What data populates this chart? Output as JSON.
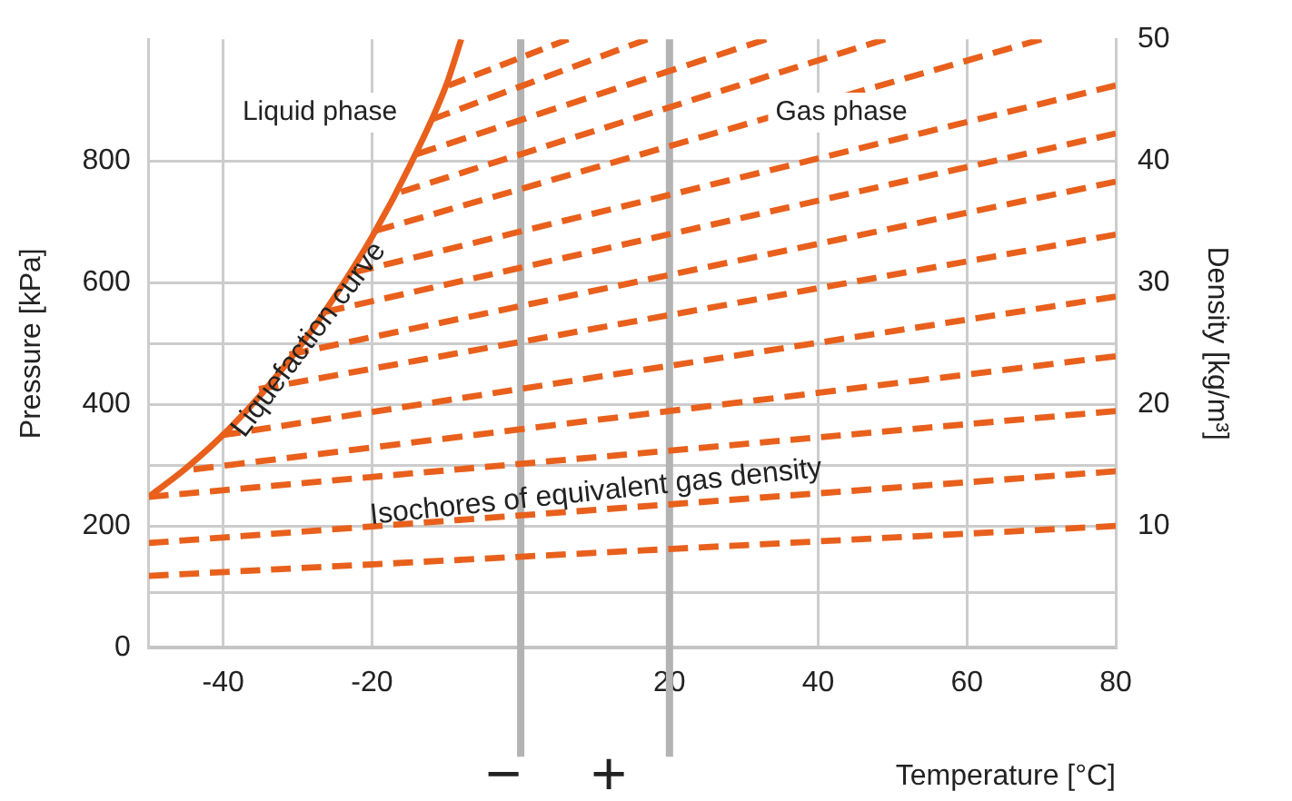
{
  "chart_data": {
    "type": "line",
    "xlabel": "Temperature [°C]",
    "ylabel": "Pressure [kPa]",
    "y2label": "Density [kg/m³]",
    "xlim": [
      -50,
      80
    ],
    "xticks": [
      -40,
      -20,
      20,
      40,
      60,
      80
    ],
    "ylim": [
      0,
      1000
    ],
    "yticks": [
      0,
      {
        "value": 90,
        "label": null
      },
      200,
      {
        "value": 300,
        "label": null
      },
      400,
      {
        "value": 500,
        "label": null
      },
      600,
      800
    ],
    "y2lim": [
      0,
      50
    ],
    "y2ticks": [
      10,
      20,
      30,
      40,
      50
    ],
    "grid": true,
    "legend": false,
    "marker": "none",
    "ref_lines": [
      {
        "axis": "x",
        "value": 0,
        "label": null,
        "color": "#b3b3b3"
      },
      {
        "axis": "x",
        "value": 20,
        "label": null,
        "color": "#b3b3b3"
      }
    ],
    "annotations": [
      "Liquid phase",
      "Gas phase",
      "Liquefaction curve",
      "Isochores of equivalent gas density",
      "−",
      "+"
    ],
    "series": [
      {
        "line_style": "solid",
        "color": "#e8601c",
        "x": [
          -50,
          -45,
          -40,
          -35,
          -30,
          -25,
          -20,
          -15,
          -10,
          -8
        ],
        "values": [
          248,
          295,
          350,
          415,
          490,
          577,
          675,
          790,
          925,
          1000
        ]
      },
      {
        "line_style": "dashed",
        "color": "#e8601c",
        "x": [
          -50,
          80
        ],
        "values": [
          118,
          200
        ]
      },
      {
        "line_style": "dashed",
        "color": "#e8601c",
        "x": [
          -50,
          80
        ],
        "values": [
          172,
          290
        ]
      },
      {
        "line_style": "dashed",
        "color": "#e8601c",
        "x": [
          -50,
          80
        ],
        "values": [
          248,
          389
        ]
      },
      {
        "line_style": "dashed",
        "color": "#e8601c",
        "x": [
          -44,
          80
        ],
        "values": [
          293,
          479
        ]
      },
      {
        "line_style": "dashed",
        "color": "#e8601c",
        "x": [
          -40.3,
          80
        ],
        "values": [
          349,
          577
        ]
      },
      {
        "line_style": "dashed",
        "color": "#e8601c",
        "x": [
          -35.2,
          80
        ],
        "values": [
          425,
          679
        ]
      },
      {
        "line_style": "dashed",
        "color": "#e8601c",
        "x": [
          -31.1,
          80
        ],
        "values": [
          482,
          766
        ]
      },
      {
        "line_style": "dashed",
        "color": "#e8601c",
        "x": [
          -26.3,
          80
        ],
        "values": [
          552,
          845
        ]
      },
      {
        "line_style": "dashed",
        "color": "#e8601c",
        "x": [
          -22.4,
          80
        ],
        "values": [
          617,
          924
        ]
      },
      {
        "line_style": "dashed",
        "color": "#e8601c",
        "x": [
          -19.6,
          70
        ],
        "values": [
          685,
          1000
        ]
      },
      {
        "line_style": "dashed",
        "color": "#e8601c",
        "x": [
          -16.1,
          49
        ],
        "values": [
          749,
          1000
        ]
      },
      {
        "line_style": "dashed",
        "color": "#e8601c",
        "x": [
          -14,
          33
        ],
        "values": [
          811,
          1000
        ]
      },
      {
        "line_style": "dashed",
        "color": "#e8601c",
        "x": [
          -12,
          17
        ],
        "values": [
          868,
          1000
        ]
      },
      {
        "line_style": "dashed",
        "color": "#e8601c",
        "x": [
          -9.7,
          6.4
        ],
        "values": [
          924,
          1000
        ]
      }
    ]
  }
}
